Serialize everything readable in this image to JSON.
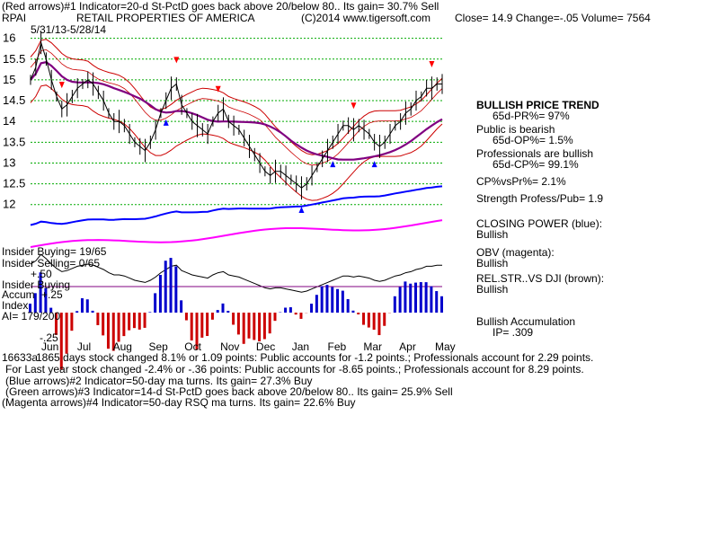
{
  "header": {
    "line1": "(Red arrows)#1 Indicator=20-d St-PctD goes back above 20/below 80.. Its gain= 30.7% Sell",
    "ticker": "RPAI",
    "company": "RETAIL PROPERTIES OF AMERICA",
    "copyright": "(C)2014 www.tigersoft.com",
    "close": "Close=  14.9  Change=-.05 Volume= 7564",
    "date_range": "5/31/13-5/28/14"
  },
  "right_panel": {
    "trend_title": "BULLISH PRICE TREND",
    "pr": "65d-PR%= 97%",
    "public_title": "Public is bearish",
    "op": "65d-OP%= 1.5%",
    "pros_title": "Professionals are bullish",
    "cp": "65d-CP%= 99.1%",
    "cpvspr": "CP%vsPr%=  2.1%",
    "strength": "Strength Profess/Pub= 1.9",
    "closing_power_title": "CLOSING POWER (blue):",
    "closing_power_val": "Bullish",
    "obv_title": "OBV (magenta):",
    "obv_val": "Bullish",
    "relstr_title": "REL.STR..VS DJI (brown):",
    "relstr_val": "Bullish",
    "accum_title": "Bullish Accumulation",
    "ip": "IP=  .309"
  },
  "insider": {
    "buying": "Insider Buying= 19/65",
    "selling": "Insider Selling= 0/65",
    "plus50": "+.50",
    "insider_buying2": "Insider Buying",
    "accum": "Accum",
    "plus25": "+.25",
    "index": "Index",
    "ai": "AI= 179/200",
    "minus25": "-.25"
  },
  "footer": {
    "line1": "1865 days stock changed  8.1% or  1.09 points:  Public accounts for -1.2 points.;  Professionals account for  2.29 points.",
    "prefix": "16633a",
    "line2": "For Last year stock changed -2.4% or -.36 points:  Public accounts for -8.65 points.;  Professionals account for  8.29 points.",
    "line3": "(Blue arrows)#2 Indicator=50-day ma turns. Its gain= 27.3% Buy",
    "line4": "(Green arrows)#3 Indicator=14-d St-PctD goes back above 20/below 80.. Its gain= 25.9% Sell",
    "line5": "(Magenta arrows)#4 Indicator=50-day RSQ ma turns. Its gain= 22.6% Buy"
  },
  "colors": {
    "price": "#000000",
    "band": "#cc0000",
    "ma50": "#800080",
    "closing_power": "#0000ff",
    "obv": "#ff00ff",
    "accum_pos": "#0000cc",
    "accum_neg": "#cc0000",
    "grid": "#00aa00",
    "arrow_red": "#ff0000",
    "arrow_blue": "#0000ff"
  },
  "chart_data": {
    "type": "line",
    "y_ticks": [
      "16",
      "15.5",
      "15",
      "14.5",
      "14",
      "13.5",
      "13",
      "12.5",
      "12"
    ],
    "ylim": [
      11.8,
      16.1
    ],
    "x_tick_labels": [
      "Jun",
      "Jul",
      "Aug",
      "Sep",
      "Oct",
      "Nov",
      "Dec",
      "Jan",
      "Feb",
      "Mar",
      "Apr",
      "May"
    ],
    "series": [
      {
        "values": [
          15.0,
          15.3,
          15.9,
          15.5,
          15.0,
          14.6,
          14.3,
          14.4,
          14.6,
          14.8,
          14.9,
          15.0,
          14.9,
          14.7,
          14.5,
          14.2,
          14.0,
          14.0,
          13.9,
          13.7,
          13.5,
          13.4,
          13.3,
          13.5,
          13.8,
          14.2,
          14.5,
          14.8,
          14.9,
          14.4,
          14.2,
          14.0,
          13.9,
          13.8,
          13.7,
          14.0,
          14.2,
          14.3,
          14.0,
          13.9,
          13.8,
          13.6,
          13.4,
          13.2,
          13.0,
          12.8,
          12.7,
          12.8,
          12.8,
          12.7,
          12.6,
          12.5,
          12.4,
          12.5,
          12.7,
          12.9,
          13.1,
          13.3,
          13.5,
          13.7,
          13.9,
          13.9,
          13.8,
          13.9,
          13.8,
          13.7,
          13.5,
          13.4,
          13.5,
          13.7,
          13.9,
          14.0,
          14.2,
          14.3,
          14.5,
          14.6,
          14.8,
          14.8,
          14.9,
          14.9
        ]
      }
    ]
  }
}
